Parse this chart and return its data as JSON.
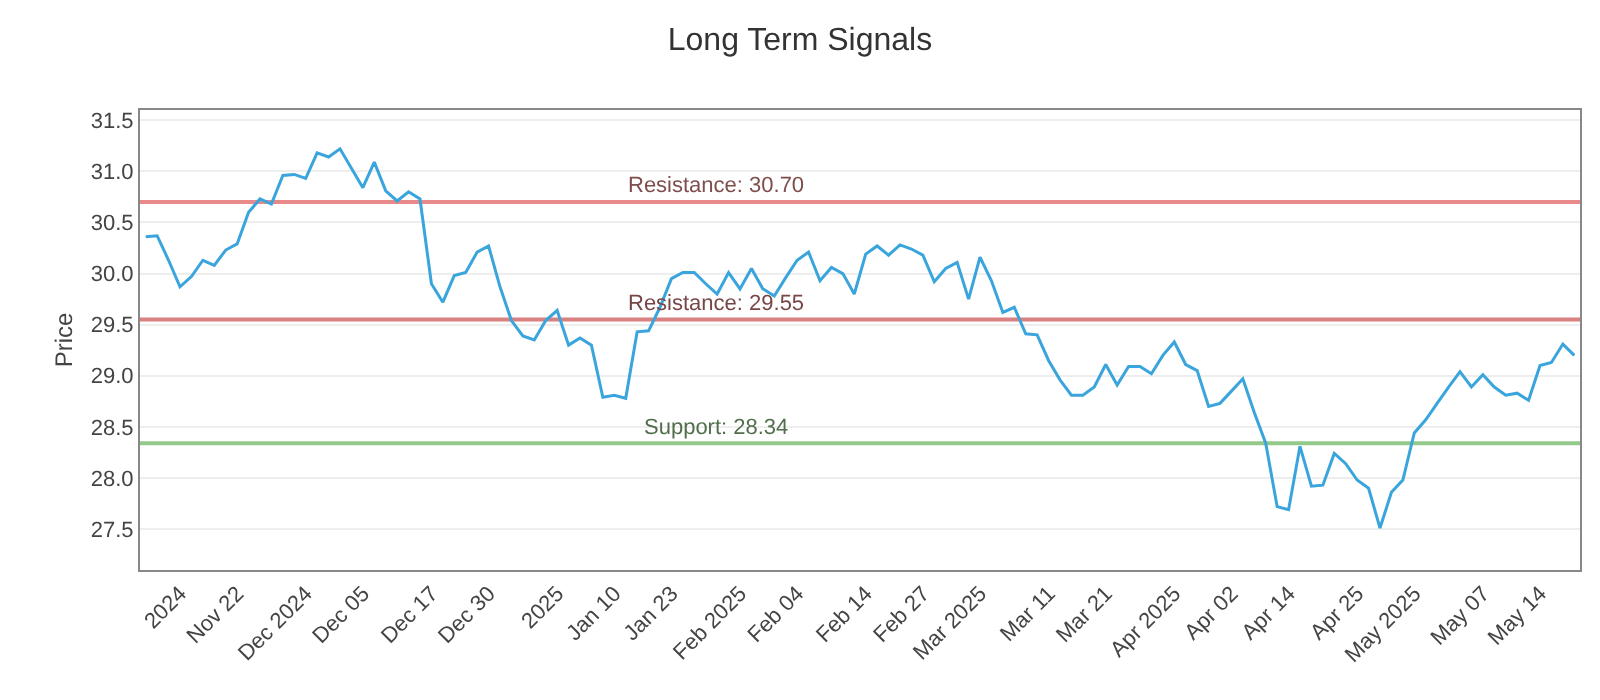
{
  "chart_data": {
    "type": "line",
    "title": "Long Term Signals",
    "ylabel": "Price",
    "categories": [
      null,
      null,
      null,
      "2024",
      null,
      null,
      null,
      null,
      "Nov 22",
      null,
      null,
      null,
      null,
      null,
      "Dec 2024",
      null,
      null,
      null,
      null,
      "Dec 05",
      null,
      null,
      null,
      null,
      null,
      "Dec 17",
      null,
      null,
      null,
      null,
      "Dec 30",
      null,
      null,
      null,
      null,
      null,
      "2025",
      null,
      null,
      null,
      null,
      "Jan 10",
      null,
      null,
      null,
      null,
      "Jan 23",
      null,
      null,
      null,
      null,
      null,
      "Feb 2025",
      null,
      null,
      null,
      null,
      "Feb 04",
      null,
      null,
      null,
      null,
      null,
      "Feb 14",
      null,
      null,
      null,
      null,
      "Feb 27",
      null,
      null,
      null,
      null,
      "Mar 2025",
      null,
      null,
      null,
      null,
      null,
      "Mar 11",
      null,
      null,
      null,
      null,
      "Mar 21",
      null,
      null,
      null,
      null,
      null,
      "Apr 2025",
      null,
      null,
      null,
      null,
      "Apr 02",
      null,
      null,
      null,
      null,
      "Apr 14",
      null,
      null,
      null,
      null,
      null,
      "Apr 25",
      null,
      null,
      null,
      null,
      "May 2025",
      null,
      null,
      null,
      null,
      null,
      "May 07",
      null,
      null,
      null,
      null,
      "May 14",
      null,
      null,
      null
    ],
    "series": [
      {
        "color": "#3aa5dc",
        "values": [
          30.36,
          30.37,
          30.13,
          29.87,
          29.97,
          30.13,
          30.08,
          30.23,
          30.29,
          30.6,
          30.73,
          30.68,
          30.96,
          30.97,
          30.93,
          31.18,
          31.14,
          31.22,
          31.03,
          30.84,
          31.09,
          30.81,
          30.71,
          30.8,
          30.73,
          29.9,
          29.72,
          29.98,
          30.01,
          30.21,
          30.27,
          29.87,
          29.54,
          29.39,
          29.35,
          29.54,
          29.64,
          29.3,
          29.37,
          29.3,
          28.79,
          28.81,
          28.78,
          29.43,
          29.44,
          29.67,
          29.95,
          30.01,
          30.01,
          29.9,
          29.8,
          30.01,
          29.85,
          30.05,
          29.85,
          29.78,
          29.96,
          30.13,
          30.21,
          29.93,
          30.06,
          30.0,
          29.8,
          30.19,
          30.27,
          30.18,
          30.28,
          30.24,
          30.18,
          29.92,
          30.05,
          30.11,
          29.75,
          30.16,
          29.93,
          29.62,
          29.67,
          29.41,
          29.4,
          29.15,
          28.96,
          28.81,
          28.81,
          28.89,
          29.11,
          28.91,
          29.09,
          29.09,
          29.02,
          29.2,
          29.33,
          29.11,
          29.05,
          28.7,
          28.73,
          28.85,
          28.97,
          28.64,
          28.34,
          27.72,
          27.69,
          28.31,
          27.92,
          27.93,
          28.24,
          28.14,
          27.98,
          27.9,
          27.51,
          27.86,
          27.98,
          28.44,
          28.57,
          28.73,
          28.89,
          29.04,
          28.89,
          29.01,
          28.89,
          28.81,
          28.83,
          28.76,
          29.1,
          29.13,
          29.31,
          29.2
        ]
      }
    ],
    "ylim": [
      27.1,
      31.6
    ],
    "yticks": [
      {
        "value": 27.5,
        "label": "27.5"
      },
      {
        "value": 28,
        "label": "28.0"
      },
      {
        "value": 28.5,
        "label": "28.5"
      },
      {
        "value": 29,
        "label": "29.0"
      },
      {
        "value": 29.5,
        "label": "29.5"
      },
      {
        "value": 30,
        "label": "30.0"
      },
      {
        "value": 30.5,
        "label": "30.5"
      },
      {
        "value": 31,
        "label": "31.0"
      },
      {
        "value": 31.5,
        "label": "31.5"
      }
    ],
    "ref_lines": [
      {
        "axis": "y",
        "value": 30.7,
        "label": "Resistance: 30.70",
        "color": "#e88a8a"
      },
      {
        "axis": "y",
        "value": 29.55,
        "label": "Resistance: 29.55",
        "color": "#d98080"
      },
      {
        "axis": "y",
        "value": 28.34,
        "label": "Support: 28.34",
        "color": "#93c98a"
      }
    ],
    "grid": "y",
    "marker": "none",
    "line_style": "solid"
  }
}
